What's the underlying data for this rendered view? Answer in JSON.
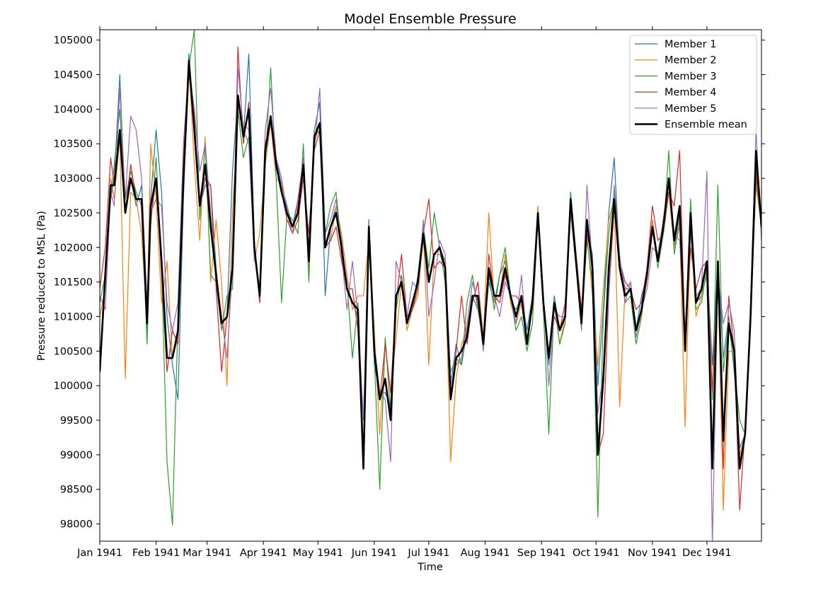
{
  "chart_data": {
    "type": "line",
    "title": "Model Ensemble Pressure",
    "xlabel": "Time",
    "ylabel": "Pressure reduced to MSL (Pa)",
    "xlim": [
      "1941-01-01",
      "1941-12-31"
    ],
    "ylim": [
      97750,
      105150
    ],
    "x_ticks": [
      {
        "date": "1941-01-01",
        "label": "Jan 1941"
      },
      {
        "date": "1941-02-01",
        "label": "Feb 1941"
      },
      {
        "date": "1941-03-01",
        "label": "Mar 1941"
      },
      {
        "date": "1941-04-01",
        "label": "Apr 1941"
      },
      {
        "date": "1941-05-01",
        "label": "May 1941"
      },
      {
        "date": "1941-06-01",
        "label": "Jun 1941"
      },
      {
        "date": "1941-07-01",
        "label": "Jul 1941"
      },
      {
        "date": "1941-08-01",
        "label": "Aug 1941"
      },
      {
        "date": "1941-09-01",
        "label": "Sep 1941"
      },
      {
        "date": "1941-10-01",
        "label": "Oct 1941"
      },
      {
        "date": "1941-11-01",
        "label": "Nov 1941"
      },
      {
        "date": "1941-12-01",
        "label": "Dec 1941"
      }
    ],
    "y_ticks": [
      98000,
      98500,
      99000,
      99500,
      100000,
      100500,
      101000,
      101500,
      102000,
      102500,
      103000,
      103500,
      104000,
      104500,
      105000
    ],
    "grid": false,
    "legend_position": "top-right",
    "x": [
      "1941-01-01",
      "1941-01-04",
      "1941-01-07",
      "1941-01-09",
      "1941-01-12",
      "1941-01-15",
      "1941-01-18",
      "1941-01-21",
      "1941-01-24",
      "1941-01-27",
      "1941-01-29",
      "1941-02-01",
      "1941-02-04",
      "1941-02-07",
      "1941-02-10",
      "1941-02-13",
      "1941-02-16",
      "1941-02-19",
      "1941-02-22",
      "1941-02-25",
      "1941-02-28",
      "1941-03-03",
      "1941-03-06",
      "1941-03-09",
      "1941-03-12",
      "1941-03-15",
      "1941-03-18",
      "1941-03-21",
      "1941-03-24",
      "1941-03-27",
      "1941-03-30",
      "1941-04-02",
      "1941-04-05",
      "1941-04-08",
      "1941-04-11",
      "1941-04-14",
      "1941-04-17",
      "1941-04-20",
      "1941-04-23",
      "1941-04-26",
      "1941-04-29",
      "1941-05-02",
      "1941-05-05",
      "1941-05-08",
      "1941-05-11",
      "1941-05-14",
      "1941-05-17",
      "1941-05-20",
      "1941-05-23",
      "1941-05-26",
      "1941-05-29",
      "1941-06-01",
      "1941-06-04",
      "1941-06-07",
      "1941-06-10",
      "1941-06-13",
      "1941-06-16",
      "1941-06-19",
      "1941-06-22",
      "1941-06-25",
      "1941-06-28",
      "1941-07-01",
      "1941-07-04",
      "1941-07-07",
      "1941-07-10",
      "1941-07-13",
      "1941-07-16",
      "1941-07-19",
      "1941-07-22",
      "1941-07-25",
      "1941-07-28",
      "1941-07-31",
      "1941-08-03",
      "1941-08-06",
      "1941-08-09",
      "1941-08-12",
      "1941-08-15",
      "1941-08-18",
      "1941-08-21",
      "1941-08-24",
      "1941-08-27",
      "1941-08-30",
      "1941-09-02",
      "1941-09-05",
      "1941-09-08",
      "1941-09-11",
      "1941-09-14",
      "1941-09-17",
      "1941-09-20",
      "1941-09-23",
      "1941-09-26",
      "1941-09-29",
      "1941-10-02",
      "1941-10-05",
      "1941-10-08",
      "1941-10-11",
      "1941-10-14",
      "1941-10-17",
      "1941-10-20",
      "1941-10-23",
      "1941-10-26",
      "1941-10-29",
      "1941-11-01",
      "1941-11-04",
      "1941-11-07",
      "1941-11-10",
      "1941-11-13",
      "1941-11-16",
      "1941-11-19",
      "1941-11-22",
      "1941-11-25",
      "1941-11-28",
      "1941-12-01",
      "1941-12-04",
      "1941-12-07",
      "1941-12-10",
      "1941-12-13",
      "1941-12-16",
      "1941-12-19",
      "1941-12-22",
      "1941-12-25",
      "1941-12-28",
      "1941-12-31"
    ],
    "series": [
      {
        "name": "Member 1",
        "color": "#1f77b4",
        "width": 1.2,
        "values": [
          100200,
          101500,
          102700,
          103000,
          104500,
          102500,
          103000,
          102600,
          102900,
          100800,
          102700,
          103700,
          102800,
          101000,
          100300,
          99800,
          102700,
          104800,
          103800,
          102600,
          102900,
          102900,
          101700,
          100900,
          101000,
          103100,
          104200,
          103600,
          104800,
          102100,
          101200,
          103200,
          103900,
          103300,
          102900,
          102600,
          102300,
          102700,
          103200,
          102000,
          103700,
          104100,
          101300,
          102300,
          102600,
          102100,
          101400,
          101200,
          101000,
          98800,
          102400,
          100300,
          99900,
          99900,
          99700,
          101300,
          101500,
          100900,
          101100,
          101600,
          102300,
          101500,
          101900,
          102000,
          101800,
          100000,
          100600,
          100300,
          100800,
          101300,
          101100,
          100700,
          101500,
          101200,
          101600,
          101800,
          101200,
          101100,
          101300,
          100800,
          101300,
          102500,
          101200,
          100300,
          101300,
          100800,
          101000,
          102800,
          101900,
          101000,
          102300,
          101900,
          100000,
          101100,
          102500,
          103300,
          101800,
          101400,
          101400,
          100800,
          101300,
          101600,
          102400,
          101800,
          102400,
          103000,
          102000,
          102500,
          100600,
          102500,
          101200,
          101300,
          101800,
          100300,
          101800,
          100400,
          101000,
          100200,
          99100,
          99300,
          101100,
          103000,
          102300
        ]
      },
      {
        "name": "Member 2",
        "color": "#ff7f0e",
        "width": 1.2,
        "values": [
          101000,
          101400,
          103000,
          102700,
          103600,
          100100,
          102800,
          102700,
          102200,
          100900,
          103500,
          102700,
          101200,
          101800,
          100400,
          100700,
          103300,
          104700,
          103200,
          102100,
          103600,
          101500,
          102400,
          101500,
          100000,
          102500,
          103900,
          103800,
          103700,
          101800,
          102200,
          103200,
          103800,
          103000,
          102900,
          102400,
          102300,
          102600,
          103300,
          101700,
          103500,
          103800,
          102000,
          102100,
          102600,
          102200,
          101600,
          101100,
          101300,
          101300,
          102100,
          100800,
          99300,
          100600,
          99900,
          100700,
          101500,
          100800,
          101100,
          101300,
          102200,
          100300,
          101900,
          101900,
          101700,
          98900,
          100100,
          100600,
          100800,
          101200,
          101500,
          100700,
          102500,
          101200,
          101300,
          101900,
          101200,
          100900,
          101200,
          100700,
          101100,
          102600,
          101300,
          100400,
          101200,
          100600,
          101000,
          102700,
          101700,
          101100,
          102200,
          101300,
          100300,
          101400,
          102400,
          102700,
          99700,
          101400,
          101500,
          100800,
          101000,
          101700,
          102400,
          101800,
          102200,
          102800,
          102000,
          102300,
          99400,
          102300,
          101000,
          101300,
          101600,
          99000,
          101700,
          98200,
          100500,
          100500,
          99000,
          99300,
          101100,
          102900,
          102300
        ]
      },
      {
        "name": "Member 3",
        "color": "#2ca02c",
        "width": 1.2,
        "values": [
          101200,
          101600,
          102700,
          103200,
          104000,
          102700,
          103100,
          102800,
          102600,
          100600,
          102300,
          103300,
          101700,
          98900,
          97980,
          101000,
          103100,
          104600,
          105150,
          102400,
          103500,
          101600,
          101500,
          100800,
          101300,
          101400,
          104000,
          103300,
          103600,
          102100,
          101200,
          103200,
          104600,
          103000,
          101200,
          102500,
          102400,
          102200,
          103500,
          101500,
          103600,
          103700,
          102200,
          102600,
          102800,
          102000,
          101500,
          100400,
          101200,
          98900,
          102400,
          100400,
          98500,
          100700,
          99600,
          101100,
          101600,
          101000,
          101100,
          101500,
          102300,
          101700,
          102500,
          102000,
          101500,
          100200,
          100400,
          100300,
          101200,
          101600,
          101100,
          100600,
          101600,
          101100,
          101600,
          102000,
          101300,
          100800,
          101000,
          100500,
          100900,
          102400,
          101100,
          99300,
          101200,
          100600,
          100900,
          102800,
          101900,
          100900,
          102100,
          101500,
          98100,
          101000,
          102200,
          102800,
          101800,
          101200,
          101300,
          100600,
          101000,
          101700,
          102300,
          101700,
          102200,
          103400,
          101900,
          102400,
          100500,
          102700,
          101100,
          101200,
          101700,
          99800,
          102900,
          100200,
          100900,
          100300,
          99500,
          99300,
          100900,
          103000,
          102300
        ]
      },
      {
        "name": "Member 4",
        "color": "#d62728",
        "width": 1.2,
        "values": [
          101400,
          102000,
          103300,
          102900,
          103700,
          102500,
          103200,
          102700,
          102700,
          101200,
          102400,
          103000,
          101600,
          100200,
          100800,
          100600,
          102800,
          104500,
          103900,
          102600,
          103000,
          102900,
          101400,
          100200,
          101000,
          101600,
          104900,
          103500,
          104100,
          102100,
          101200,
          103500,
          103800,
          103200,
          102800,
          102400,
          102200,
          102400,
          103000,
          102200,
          103400,
          103700,
          102000,
          102100,
          102300,
          101800,
          101400,
          101400,
          100800,
          98900,
          102100,
          100500,
          99800,
          100600,
          99900,
          101200,
          101900,
          101000,
          101100,
          101400,
          102200,
          102700,
          101700,
          101800,
          101700,
          99800,
          100500,
          101300,
          100600,
          101200,
          101500,
          100600,
          101900,
          101300,
          101200,
          101600,
          101300,
          101300,
          101200,
          100600,
          101300,
          102400,
          101100,
          100500,
          101000,
          100800,
          101200,
          102500,
          101900,
          101100,
          102200,
          101800,
          99000,
          99300,
          101300,
          102600,
          101800,
          101500,
          101400,
          101100,
          101200,
          101700,
          102600,
          102100,
          102200,
          102800,
          102600,
          103400,
          100600,
          102000,
          101400,
          101700,
          101800,
          99900,
          101600,
          98800,
          101300,
          100500,
          98200,
          99400,
          101100,
          103100,
          102300
        ]
      },
      {
        "name": "Member 5",
        "color": "#9467bd",
        "width": 1.2,
        "values": [
          101300,
          101100,
          102800,
          102600,
          104300,
          102700,
          103900,
          103700,
          103000,
          101200,
          102500,
          102700,
          102600,
          101200,
          100800,
          101200,
          103500,
          104600,
          104000,
          103100,
          103500,
          102500,
          101600,
          101000,
          100400,
          101700,
          104600,
          103700,
          103500,
          101900,
          101300,
          103700,
          104300,
          103300,
          103000,
          102500,
          102200,
          102700,
          103300,
          101900,
          103400,
          104300,
          102200,
          102400,
          102700,
          101900,
          101100,
          101800,
          101000,
          99500,
          102300,
          100600,
          99900,
          99800,
          98900,
          101800,
          101500,
          101000,
          101500,
          101400,
          102400,
          101000,
          101500,
          102100,
          101900,
          100100,
          100300,
          100400,
          100900,
          101500,
          101200,
          100500,
          101600,
          101300,
          101000,
          101500,
          101300,
          100900,
          101600,
          100600,
          101300,
          102500,
          101300,
          100000,
          101100,
          101000,
          101000,
          102500,
          101700,
          100800,
          102900,
          101700,
          99600,
          100200,
          101300,
          102900,
          101900,
          101200,
          101500,
          100700,
          101100,
          101400,
          102000,
          101900,
          102400,
          102900,
          102200,
          102100,
          100800,
          102200,
          101300,
          101400,
          103100,
          97700,
          101600,
          100900,
          101200,
          100800,
          98900,
          99300,
          101200,
          103700,
          102100
        ]
      },
      {
        "name": "Ensemble mean",
        "color": "#000000",
        "width": 2.6,
        "values": [
          100200,
          101600,
          102900,
          102900,
          103700,
          102500,
          103000,
          102700,
          102700,
          100900,
          102600,
          103000,
          101800,
          100400,
          100400,
          100800,
          103000,
          104700,
          103700,
          102600,
          103200,
          102300,
          101600,
          100900,
          101000,
          101700,
          104200,
          103600,
          104000,
          102000,
          101300,
          103400,
          103900,
          103200,
          102800,
          102500,
          102300,
          102500,
          103200,
          101800,
          103600,
          103800,
          102000,
          102300,
          102500,
          102000,
          101400,
          101200,
          101100,
          98800,
          102300,
          100500,
          99800,
          100100,
          99500,
          101300,
          101500,
          100900,
          101200,
          101500,
          102200,
          101500,
          101900,
          102000,
          101700,
          99800,
          100400,
          100500,
          100700,
          101300,
          101300,
          100600,
          101700,
          101300,
          101300,
          101700,
          101300,
          101000,
          101300,
          100600,
          101200,
          102500,
          101200,
          100400,
          101200,
          100800,
          101000,
          102700,
          101800,
          100900,
          102400,
          101700,
          99000,
          100100,
          101700,
          102700,
          101700,
          101300,
          101400,
          100800,
          101100,
          101600,
          102300,
          101800,
          102300,
          103000,
          102100,
          102600,
          100500,
          102500,
          101200,
          101400,
          101800,
          98800,
          101800,
          99200,
          100900,
          100500,
          98800,
          99300,
          101000,
          103400,
          102300
        ]
      }
    ]
  }
}
